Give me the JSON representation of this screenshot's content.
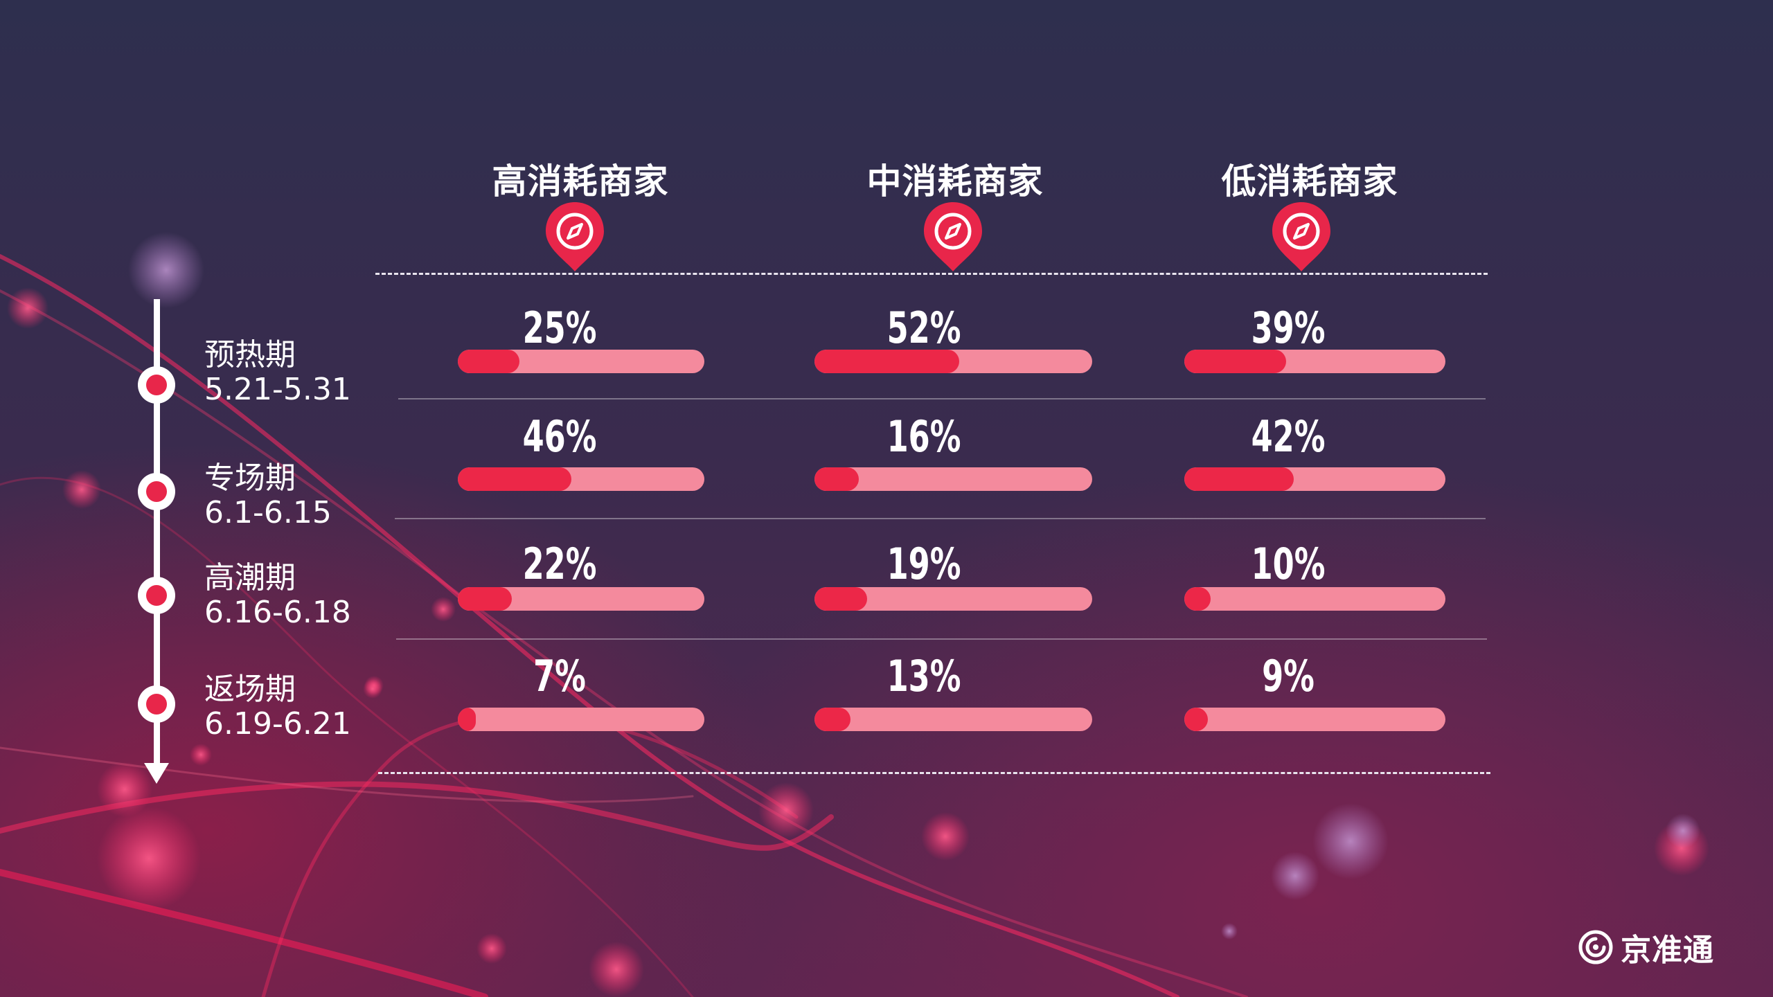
{
  "chart_data": {
    "type": "bar",
    "categories": [
      "预热期",
      "专场期",
      "高潮期",
      "返场期"
    ],
    "category_dates": [
      "5.21-5.31",
      "6.1-6.15",
      "6.16-6.18",
      "6.19-6.21"
    ],
    "series": [
      {
        "name": "高消耗商家",
        "values": [
          25,
          46,
          22,
          7
        ],
        "labels": [
          "25%",
          "46%",
          "22%",
          "7%"
        ]
      },
      {
        "name": "中消耗商家",
        "values": [
          52,
          16,
          19,
          13
        ],
        "labels": [
          "52%",
          "16%",
          "19%",
          "13%"
        ]
      },
      {
        "name": "低消耗商家",
        "values": [
          39,
          42,
          10,
          9
        ],
        "labels": [
          "39%",
          "42%",
          "10%",
          "9%"
        ]
      }
    ],
    "ylim": [
      0,
      100
    ],
    "unit": "%"
  },
  "colors": {
    "fill": "#ec2748",
    "track": "#f48a9d",
    "accent": "#e8264a",
    "text": "#ffffff"
  },
  "icons": [
    "compass-pin-icon",
    "jzt-logo-icon"
  ],
  "brand": {
    "name": "京准通"
  }
}
